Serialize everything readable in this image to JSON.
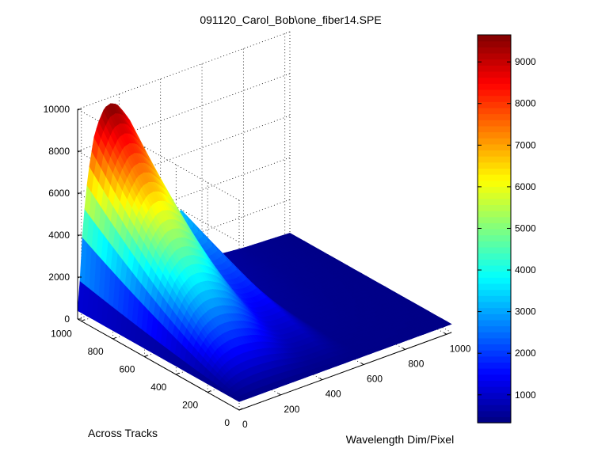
{
  "chart_data": {
    "type": "surface",
    "title": "091120_Carol_Bob\\one_fiber14.SPE",
    "xlabel": "Wavelength Dim/Pixel",
    "ylabel": "Across Tracks",
    "zlabel": "",
    "xlim": [
      0,
      1024
    ],
    "ylim": [
      0,
      1024
    ],
    "zlim": [
      0,
      10000
    ],
    "clim": [
      330,
      9650
    ],
    "colormap": "jet",
    "grid": true,
    "x_ticks": [
      "0",
      "200",
      "400",
      "600",
      "800",
      "1000"
    ],
    "y_ticks": [
      "0",
      "200",
      "400",
      "600",
      "800",
      "1000"
    ],
    "z_ticks": [
      "0",
      "2000",
      "4000",
      "6000",
      "8000",
      "10000"
    ],
    "colorbar_ticks": [
      "1000",
      "2000",
      "3000",
      "4000",
      "5000",
      "6000",
      "7000",
      "8000",
      "9000"
    ],
    "surface_profile": {
      "description_of_values": "approximate z along x (wavelength pixel) at y = 1000; z decreases toward baseline as y decreases",
      "x": [
        0,
        10,
        20,
        40,
        60,
        80,
        100,
        130,
        160,
        190,
        220,
        250,
        280,
        310,
        340,
        360,
        380,
        400,
        420,
        440,
        460,
        480,
        500,
        600,
        800,
        1024
      ],
      "z_at_y_max": [
        400,
        1500,
        3500,
        5800,
        7300,
        8400,
        9000,
        9600,
        9700,
        9550,
        9100,
        8600,
        7800,
        6800,
        5700,
        4900,
        4200,
        3700,
        3400,
        3300,
        3200,
        3300,
        3400,
        700,
        500,
        400
      ],
      "baseline": 400
    }
  }
}
